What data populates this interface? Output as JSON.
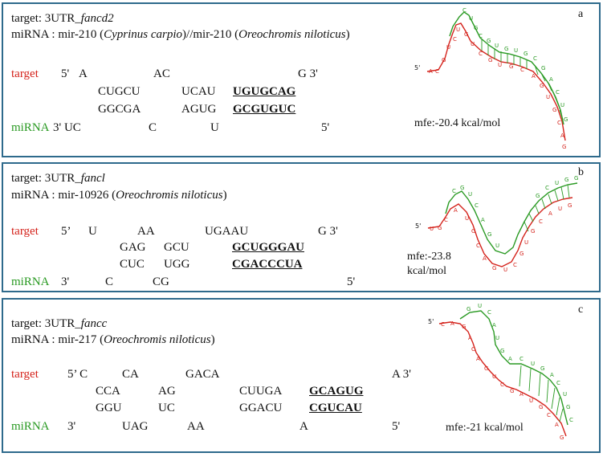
{
  "panels": [
    {
      "letter": "a",
      "target_line": {
        "prefix": "target: 3UTR_",
        "gene": "fancd2"
      },
      "mirna_line": {
        "prefix": "miRNA : mir-210 (",
        "species1": "Cyprinus carpio",
        "mid": ")//mir-210 (",
        "species2": "Oreochromis niloticus",
        "suffix": ")"
      },
      "target_label": "target",
      "mirna_label": "miRNA",
      "rows": {
        "r1": {
          "a": "5'",
          "b": "A",
          "c": "AC",
          "d": "G 3'"
        },
        "r2": {
          "a": "CUGCU",
          "b": "UCAU",
          "c": "UGUGCAG"
        },
        "r3": {
          "a": "GGCGA",
          "b": "AGUG",
          "c": "GCGUGUC"
        },
        "r4": {
          "a": "3' UC",
          "b": "C",
          "c": "U",
          "d": "5'"
        }
      },
      "mfe": "mfe:-20.4 kcal/mol",
      "five_prime": "5'"
    },
    {
      "letter": "b",
      "target_line": {
        "prefix": "target: 3UTR_",
        "gene": "fancl"
      },
      "mirna_line": {
        "prefix": "miRNA : mir-10926 (",
        "species": "Oreochromis niloticus",
        "suffix": ")"
      },
      "target_label": "target",
      "mirna_label": "miRNA",
      "rows": {
        "r1": {
          "a": "5’",
          "b": "U",
          "c": "AA",
          "d": "UGAAU",
          "e": "G 3'"
        },
        "r2": {
          "a": "GAG",
          "b": "GCU",
          "c": "GCUGGGAU"
        },
        "r3": {
          "a": "CUC",
          "b": "UGG",
          "c": "CGACCCUA"
        },
        "r4": {
          "a": "3'",
          "b": "C",
          "c": "CG",
          "d": "5'"
        }
      },
      "mfe": "mfe:-23.8 kcal/mol",
      "five_prime": "5'"
    },
    {
      "letter": "c",
      "target_line": {
        "prefix": "target: 3UTR_",
        "gene": "fancc"
      },
      "mirna_line": {
        "prefix": "miRNA : mir-217 (",
        "species": "Oreochromis niloticus",
        "suffix": ")"
      },
      "target_label": "target",
      "mirna_label": "miRNA",
      "rows": {
        "r1": {
          "a": "5’ C",
          "b": "CA",
          "c": "GACA",
          "d": "A 3'"
        },
        "r2": {
          "a": "CCA",
          "b": "AG",
          "c": "CUUGA",
          "d": "GCAGUG"
        },
        "r3": {
          "a": "GGU",
          "b": "UC",
          "c": "GGACU",
          "d": "CGUCAU"
        },
        "r4": {
          "a": "3'",
          "b": "UAG",
          "c": "AA",
          "d": "A",
          "e": "5'"
        }
      },
      "mfe": "mfe:-21 kcal/mol",
      "five_prime": "5'"
    }
  ],
  "colors": {
    "border": "#2e6a8c",
    "target": "#d4221b",
    "mirna": "#2a9a23"
  }
}
